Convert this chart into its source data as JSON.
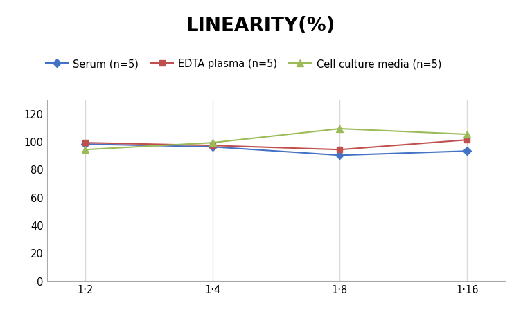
{
  "title": "LINEARITY(%)",
  "x_labels": [
    "1·2",
    "1·4",
    "1·8",
    "1·16"
  ],
  "x_positions": [
    0,
    1,
    2,
    3
  ],
  "series": [
    {
      "label": "Serum (n=5)",
      "values": [
        98,
        96,
        90,
        93
      ],
      "color": "#4472c4",
      "marker": "D",
      "markersize": 6,
      "linewidth": 1.5
    },
    {
      "label": "EDTA plasma (n=5)",
      "values": [
        99,
        97,
        94,
        101
      ],
      "color": "#c0504d",
      "marker": "s",
      "markersize": 6,
      "linewidth": 1.5
    },
    {
      "label": "Cell culture media (n=5)",
      "values": [
        94,
        99,
        109,
        105
      ],
      "color": "#9bbb59",
      "marker": "^",
      "markersize": 7,
      "linewidth": 1.5
    }
  ],
  "ylim": [
    0,
    130
  ],
  "yticks": [
    0,
    20,
    40,
    60,
    80,
    100,
    120
  ],
  "background_color": "#ffffff",
  "grid_color": "#d9d9d9",
  "title_fontsize": 20,
  "title_fontweight": "bold",
  "legend_fontsize": 10.5,
  "tick_fontsize": 10.5
}
